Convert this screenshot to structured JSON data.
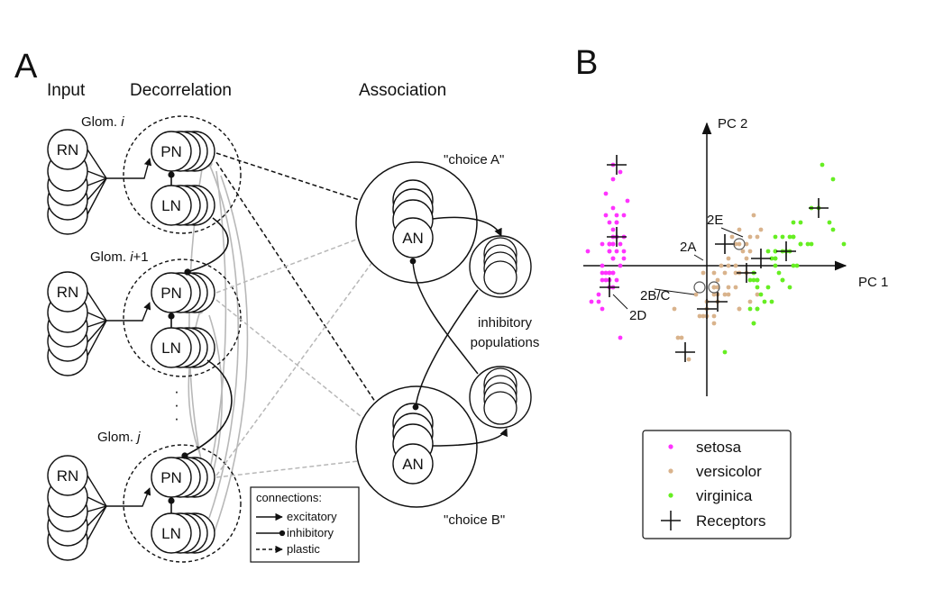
{
  "panel_a": {
    "letter": "A",
    "col_input": "Input",
    "col_decorrelation": "Decorrelation",
    "col_association": "Association",
    "glomeruli": [
      {
        "name_prefix": "Glom. ",
        "name_var": "i",
        "name_suffix": ""
      },
      {
        "name_prefix": "Glom. ",
        "name_var": "i",
        "name_suffix": "+1"
      },
      {
        "name_prefix": "Glom. ",
        "name_var": "j",
        "name_suffix": ""
      }
    ],
    "rn_label": "RN",
    "pn_label": "PN",
    "ln_label": "LN",
    "an_label": "AN",
    "ellipsis": "·\n·\n·",
    "choice_a": "\"choice A\"",
    "choice_b": "\"choice B\"",
    "inhibitory_line1": "inhibitory",
    "inhibitory_line2": "populations",
    "legend": {
      "title": "connections:",
      "items": [
        {
          "label": "excitatory",
          "marker": "triangle",
          "style": "solid"
        },
        {
          "label": "inhibitory",
          "marker": "dot",
          "style": "solid"
        },
        {
          "label": "plastic",
          "marker": "triangle",
          "style": "dashed"
        }
      ]
    },
    "colors": {
      "line": "#111111",
      "grey": "#b8b8b8"
    }
  },
  "panel_b": {
    "letter": "B",
    "chart_data": {
      "type": "scatter",
      "xlabel": "PC 1",
      "ylabel": "PC 2",
      "xlim": [
        -3.8,
        4.4
      ],
      "ylim": [
        -1.8,
        2.1
      ],
      "series": [
        {
          "name": "setosa",
          "color": "#ff33ff",
          "points": [
            [
              -2.7,
              0.3
            ],
            [
              -2.7,
              -0.2
            ],
            [
              -2.9,
              -0.1
            ],
            [
              -2.7,
              -0.3
            ],
            [
              -2.7,
              0.3
            ],
            [
              -2.3,
              0.7
            ],
            [
              -2.8,
              -0.1
            ],
            [
              -2.6,
              0.1
            ],
            [
              -2.9,
              -0.6
            ],
            [
              -2.7,
              -0.1
            ],
            [
              -2.5,
              0.6
            ],
            [
              -2.6,
              0.1
            ],
            [
              -2.8,
              -0.2
            ],
            [
              -3.2,
              -0.5
            ],
            [
              -2.6,
              1.2
            ],
            [
              -2.4,
              1.3
            ],
            [
              -2.6,
              0.8
            ],
            [
              -2.7,
              0.3
            ],
            [
              -2.2,
              0.9
            ],
            [
              -2.6,
              0.5
            ],
            [
              -2.3,
              0.4
            ],
            [
              -2.5,
              0.4
            ],
            [
              -3.3,
              0.2
            ],
            [
              -2.3,
              0.1
            ],
            [
              -2.4,
              0.0
            ],
            [
              -2.5,
              -0.2
            ],
            [
              -2.5,
              0.2
            ],
            [
              -2.6,
              0.4
            ],
            [
              -2.6,
              0.3
            ],
            [
              -2.6,
              -0.1
            ],
            [
              -2.6,
              -0.1
            ],
            [
              -2.3,
              0.2
            ],
            [
              -2.8,
              1.0
            ],
            [
              -2.6,
              1.4
            ],
            [
              -2.7,
              -0.1
            ],
            [
              -2.9,
              0.0
            ],
            [
              -2.5,
              0.6
            ],
            [
              -2.9,
              0.3
            ],
            [
              -3.0,
              -0.5
            ],
            [
              -2.6,
              0.3
            ],
            [
              -2.7,
              0.2
            ],
            [
              -2.4,
              -1.0
            ],
            [
              -3.0,
              -0.4
            ],
            [
              -2.4,
              0.3
            ],
            [
              -2.7,
              0.6
            ],
            [
              -2.6,
              -0.3
            ],
            [
              -2.8,
              0.7
            ],
            [
              -2.9,
              -0.2
            ],
            [
              -2.5,
              0.7
            ],
            [
              -2.7,
              0.2
            ]
          ]
        },
        {
          "name": "versicolor",
          "color": "#d9b38c",
          "points": [
            [
              1.3,
              0.7
            ],
            [
              0.9,
              0.3
            ],
            [
              1.5,
              0.5
            ],
            [
              0.2,
              -0.8
            ],
            [
              1.1,
              0.1
            ],
            [
              0.6,
              -0.4
            ],
            [
              1.1,
              0.3
            ],
            [
              -0.8,
              -1.0
            ],
            [
              1.0,
              0.2
            ],
            [
              0.0,
              -0.7
            ],
            [
              -0.5,
              -1.3
            ],
            [
              0.5,
              -0.1
            ],
            [
              0.3,
              -0.5
            ],
            [
              0.9,
              -0.1
            ],
            [
              -0.1,
              -0.1
            ],
            [
              0.9,
              0.5
            ],
            [
              0.6,
              -0.3
            ],
            [
              0.2,
              -0.3
            ],
            [
              0.9,
              -0.6
            ],
            [
              0.0,
              -0.5
            ],
            [
              1.1,
              -0.1
            ],
            [
              0.4,
              0.0
            ],
            [
              1.2,
              -0.5
            ],
            [
              0.8,
              -0.3
            ],
            [
              0.6,
              0.1
            ],
            [
              0.8,
              0.3
            ],
            [
              1.2,
              0.2
            ],
            [
              1.4,
              0.4
            ],
            [
              0.8,
              -0.1
            ],
            [
              -0.3,
              -0.4
            ],
            [
              -0.1,
              -0.7
            ],
            [
              -0.2,
              -0.7
            ],
            [
              0.2,
              -0.3
            ],
            [
              1.4,
              -0.4
            ],
            [
              0.5,
              -0.4
            ],
            [
              0.7,
              0.4
            ],
            [
              1.2,
              0.4
            ],
            [
              0.9,
              -0.6
            ],
            [
              0.2,
              -0.1
            ],
            [
              0.0,
              -0.6
            ],
            [
              0.2,
              -0.7
            ],
            [
              0.8,
              0.0
            ],
            [
              0.2,
              -0.4
            ],
            [
              -0.7,
              -1.0
            ],
            [
              0.3,
              -0.4
            ],
            [
              0.3,
              -0.2
            ],
            [
              0.3,
              -0.3
            ],
            [
              0.6,
              0.0
            ],
            [
              -0.9,
              -0.6
            ],
            [
              0.2,
              -0.3
            ]
          ]
        },
        {
          "name": "virginica",
          "color": "#66ee22",
          "points": [
            [
              2.5,
              0.0
            ],
            [
              1.4,
              -0.6
            ],
            [
              2.6,
              0.3
            ],
            [
              2.0,
              -0.1
            ],
            [
              2.4,
              0.0
            ],
            [
              3.4,
              0.6
            ],
            [
              0.5,
              -1.2
            ],
            [
              2.9,
              0.3
            ],
            [
              2.3,
              -0.3
            ],
            [
              2.9,
              0.8
            ],
            [
              1.7,
              0.2
            ],
            [
              1.7,
              -0.3
            ],
            [
              2.2,
              0.2
            ],
            [
              1.3,
              -0.8
            ],
            [
              1.6,
              -0.5
            ],
            [
              1.9,
              0.1
            ],
            [
              1.9,
              0.0
            ],
            [
              3.5,
              1.2
            ],
            [
              3.8,
              0.3
            ],
            [
              1.3,
              -0.8
            ],
            [
              2.4,
              0.4
            ],
            [
              1.2,
              -0.6
            ],
            [
              3.5,
              0.5
            ],
            [
              1.4,
              -0.2
            ],
            [
              2.3,
              0.4
            ],
            [
              2.6,
              0.6
            ],
            [
              1.3,
              -0.2
            ],
            [
              1.3,
              -0.1
            ],
            [
              2.1,
              -0.2
            ],
            [
              2.4,
              0.6
            ],
            [
              2.8,
              0.3
            ],
            [
              3.2,
              1.4
            ],
            [
              2.1,
              -0.2
            ],
            [
              1.4,
              -0.2
            ],
            [
              1.8,
              -0.5
            ],
            [
              3.1,
              0.8
            ],
            [
              2.1,
              0.2
            ],
            [
              1.9,
              0.1
            ],
            [
              1.2,
              -0.2
            ],
            [
              2.1,
              0.4
            ],
            [
              2.3,
              0.2
            ],
            [
              1.9,
              0.4
            ],
            [
              1.4,
              -0.6
            ],
            [
              2.6,
              0.3
            ],
            [
              2.4,
              0.4
            ],
            [
              1.9,
              0.2
            ],
            [
              1.5,
              -0.4
            ],
            [
              1.8,
              0.1
            ],
            [
              1.9,
              0.2
            ],
            [
              1.4,
              -0.3
            ]
          ]
        },
        {
          "name": "Receptors",
          "color": "#111111",
          "marker": "plus",
          "points": [
            [
              -2.5,
              1.4
            ],
            [
              -2.5,
              0.4
            ],
            [
              -2.7,
              -0.3
            ],
            [
              0.5,
              0.3
            ],
            [
              1.1,
              -0.1
            ],
            [
              2.2,
              0.2
            ],
            [
              3.1,
              0.8
            ],
            [
              0.0,
              -0.6
            ],
            [
              0.3,
              -0.5
            ],
            [
              -0.6,
              -1.2
            ],
            [
              1.5,
              0.1
            ]
          ]
        }
      ],
      "annotations": [
        {
          "text": "2A",
          "point": [
            0.0,
            0.0
          ]
        },
        {
          "text": "2B/C",
          "point": [
            -0.2,
            -0.3
          ]
        },
        {
          "text": "2D",
          "point": [
            -2.7,
            -0.3
          ]
        },
        {
          "text": "2E",
          "point": [
            0.9,
            0.3
          ]
        }
      ],
      "circled_points": [
        [
          -0.2,
          -0.3
        ],
        [
          0.2,
          -0.3
        ],
        [
          0.9,
          0.3
        ]
      ],
      "legend": {
        "placement": "bottom"
      }
    }
  }
}
